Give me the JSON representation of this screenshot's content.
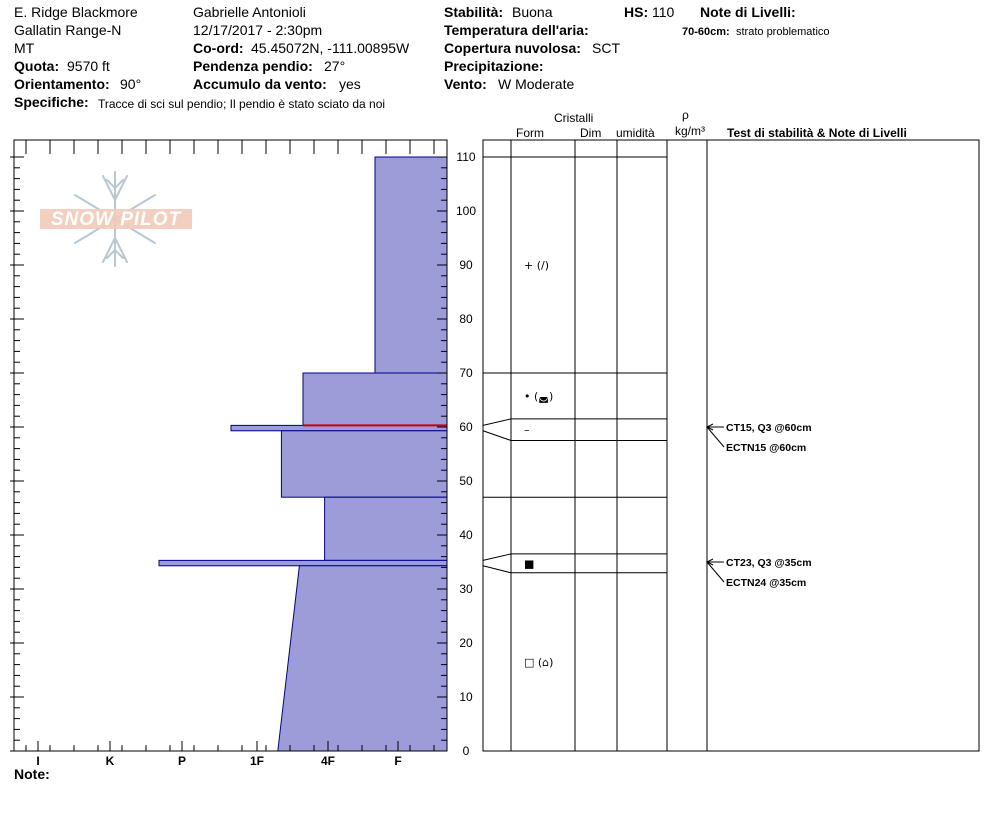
{
  "header": {
    "location": "E. Ridge Blackmore",
    "range": "Gallatin Range-N",
    "state": "MT",
    "elevation_label": "Quota:",
    "elevation_value": "9570 ft",
    "aspect_label": "Orientamento:",
    "aspect_value": "90°",
    "specifics_label": "Specifiche:",
    "specifics_value": "Tracce di sci sul pendio;  Il pendio è stato sciato da noi",
    "observer": "Gabrielle Antonioli",
    "datetime": "12/17/2017 - 2:30pm",
    "coord_label": "Co-ord:",
    "coord_value": "45.45072N, -111.00895W",
    "slope_label": "Pendenza pendio:",
    "slope_value": "27°",
    "wind_loading_label": "Accumulo da vento:",
    "wind_loading_value": "yes",
    "stability_label": "Stabilità:",
    "stability_value": "Buona",
    "air_temp_label": "Temperatura dell'aria:",
    "cloud_label": "Copertura nuvolosa:",
    "cloud_value": "SCT",
    "precip_label": "Precipitazione:",
    "wind_label": "Vento:",
    "wind_value": "W Moderate",
    "hs_label": "HS:",
    "hs_value": "110",
    "layer_notes_label": "Note di Livelli:",
    "layer_note_depth": "70-60cm:",
    "layer_note_text": "strato problematico"
  },
  "columns": {
    "crystals": "Cristalli",
    "form": "Form",
    "dim": "Dim",
    "moisture": "umidità",
    "rho": "ρ",
    "density_unit": "kg/m³",
    "tests": "Test di stabilità & Note di Livelli"
  },
  "logo_text": "SNOW PILOT",
  "notes_label": "Note:",
  "chart_data": {
    "type": "bar",
    "orientation": "horizontal",
    "title": "",
    "ylabel": "",
    "xlabel": "",
    "y_range": [
      0,
      110
    ],
    "y_ticks": [
      0,
      10,
      20,
      30,
      40,
      50,
      60,
      70,
      80,
      90,
      100,
      110
    ],
    "hardness_scale": [
      "I",
      "K",
      "P",
      "1F",
      "4F",
      "F"
    ],
    "colors": {
      "layer_fill": "#9c9cd8",
      "layer_stroke": "#00008b",
      "problem_line": "#d00000"
    },
    "layers": [
      {
        "top": 110,
        "bottom": 70,
        "hardness": 1.0
      },
      {
        "top": 70,
        "bottom": 60.3,
        "hardness": 2.0
      },
      {
        "top": 60.3,
        "bottom": 59.3,
        "hardness": 3.0
      },
      {
        "top": 59.3,
        "bottom": 47,
        "hardness": 2.3
      },
      {
        "top": 47,
        "bottom": 35.3,
        "hardness": 1.7
      },
      {
        "top": 35.3,
        "bottom": 34.3,
        "hardness": 4.0
      },
      {
        "top": 34.3,
        "bottom": 0,
        "hardness_top": 2.05,
        "hardness_bottom": 2.35
      }
    ],
    "problem_layer_depth": 60.3,
    "crystal_rows": [
      {
        "top": 110,
        "bottom": 70,
        "form": "+ (/)"
      },
      {
        "top": 70,
        "bottom": 61.5,
        "form": "• (◛)"
      },
      {
        "top": 61.5,
        "bottom": 57.5,
        "form": "–"
      },
      {
        "top": 57.5,
        "bottom": 47,
        "form": ""
      },
      {
        "top": 47,
        "bottom": 36.5,
        "form": ""
      },
      {
        "top": 36.5,
        "bottom": 33,
        "form": "■"
      },
      {
        "top": 33,
        "bottom": 0,
        "form": "□ (⌂)"
      }
    ],
    "tests": [
      {
        "depth": 60,
        "label": "CT15, Q3 @60cm",
        "label2": "ECTN15 @60cm"
      },
      {
        "depth": 35,
        "label": "CT23, Q3 @35cm",
        "label2": "ECTN24 @35cm"
      }
    ]
  }
}
